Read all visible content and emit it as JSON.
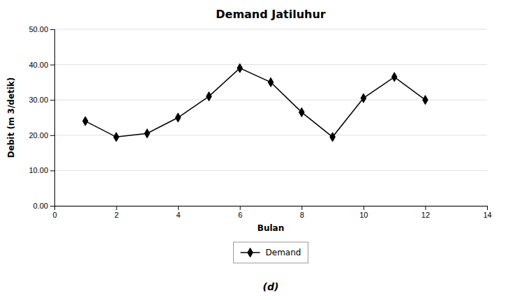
{
  "chart_data": {
    "type": "line",
    "title": "Demand Jatiluhur",
    "xlabel": "Bulan",
    "ylabel": "Debit (m 3/detik)",
    "caption": "(d)",
    "x": [
      1,
      2,
      3,
      4,
      5,
      6,
      7,
      8,
      9,
      10,
      11,
      12
    ],
    "series": [
      {
        "name": "Demand",
        "color": "#000000",
        "marker": "diamond",
        "values": [
          24.0,
          19.5,
          20.5,
          25.0,
          31.0,
          39.0,
          35.0,
          26.5,
          19.5,
          30.5,
          36.5,
          30.0
        ]
      }
    ],
    "xlim": [
      0,
      14
    ],
    "ylim": [
      0.0,
      50.0
    ],
    "xticks": [
      0,
      2,
      4,
      6,
      8,
      10,
      12,
      14
    ],
    "yticks": [
      {
        "value": 0.0,
        "label": "0.00"
      },
      {
        "value": 10.0,
        "label": "10.00"
      },
      {
        "value": 20.0,
        "label": "20.00"
      },
      {
        "value": 30.0,
        "label": "30.00"
      },
      {
        "value": 40.0,
        "label": "40.00"
      },
      {
        "value": 50.0,
        "label": "50.00"
      }
    ],
    "grid": "y",
    "legend": "bottom"
  }
}
